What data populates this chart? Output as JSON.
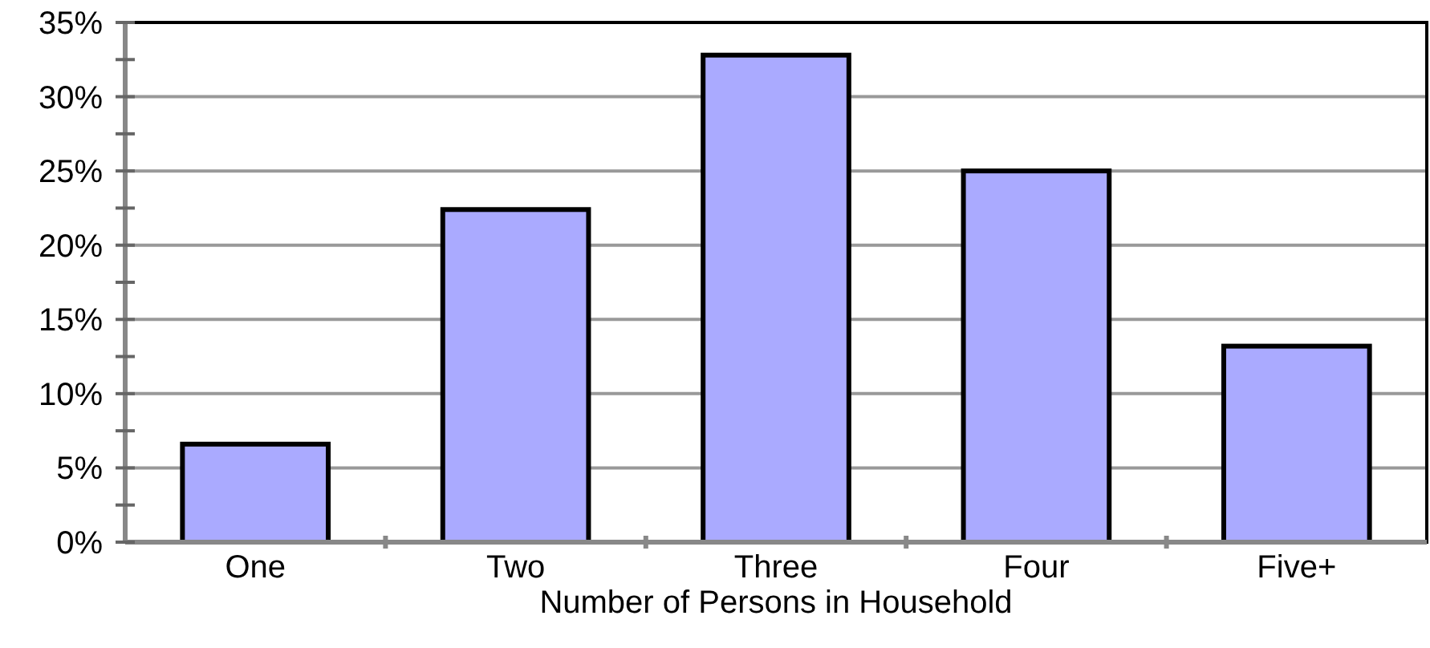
{
  "chart_data": {
    "type": "bar",
    "xlabel": "Number of Persons in Household",
    "categories": [
      "One",
      "Two",
      "Three",
      "Four",
      "Five+"
    ],
    "values": [
      6.6,
      22.4,
      32.8,
      25.0,
      13.2
    ],
    "color": "#aaaaff",
    "ylim": [
      0,
      35
    ],
    "yticks": [
      {
        "value": 0,
        "label": "0%"
      },
      {
        "value": 2.5,
        "label": null
      },
      {
        "value": 5,
        "label": "5%"
      },
      {
        "value": 7.5,
        "label": null
      },
      {
        "value": 10,
        "label": "10%"
      },
      {
        "value": 12.5,
        "label": null
      },
      {
        "value": 15,
        "label": "15%"
      },
      {
        "value": 17.5,
        "label": null
      },
      {
        "value": 20,
        "label": "20%"
      },
      {
        "value": 22.5,
        "label": null
      },
      {
        "value": 25,
        "label": "25%"
      },
      {
        "value": 27.5,
        "label": null
      },
      {
        "value": 30,
        "label": "30%"
      },
      {
        "value": 32.5,
        "label": null
      },
      {
        "value": 35,
        "label": "35%"
      }
    ],
    "grid": "y"
  }
}
